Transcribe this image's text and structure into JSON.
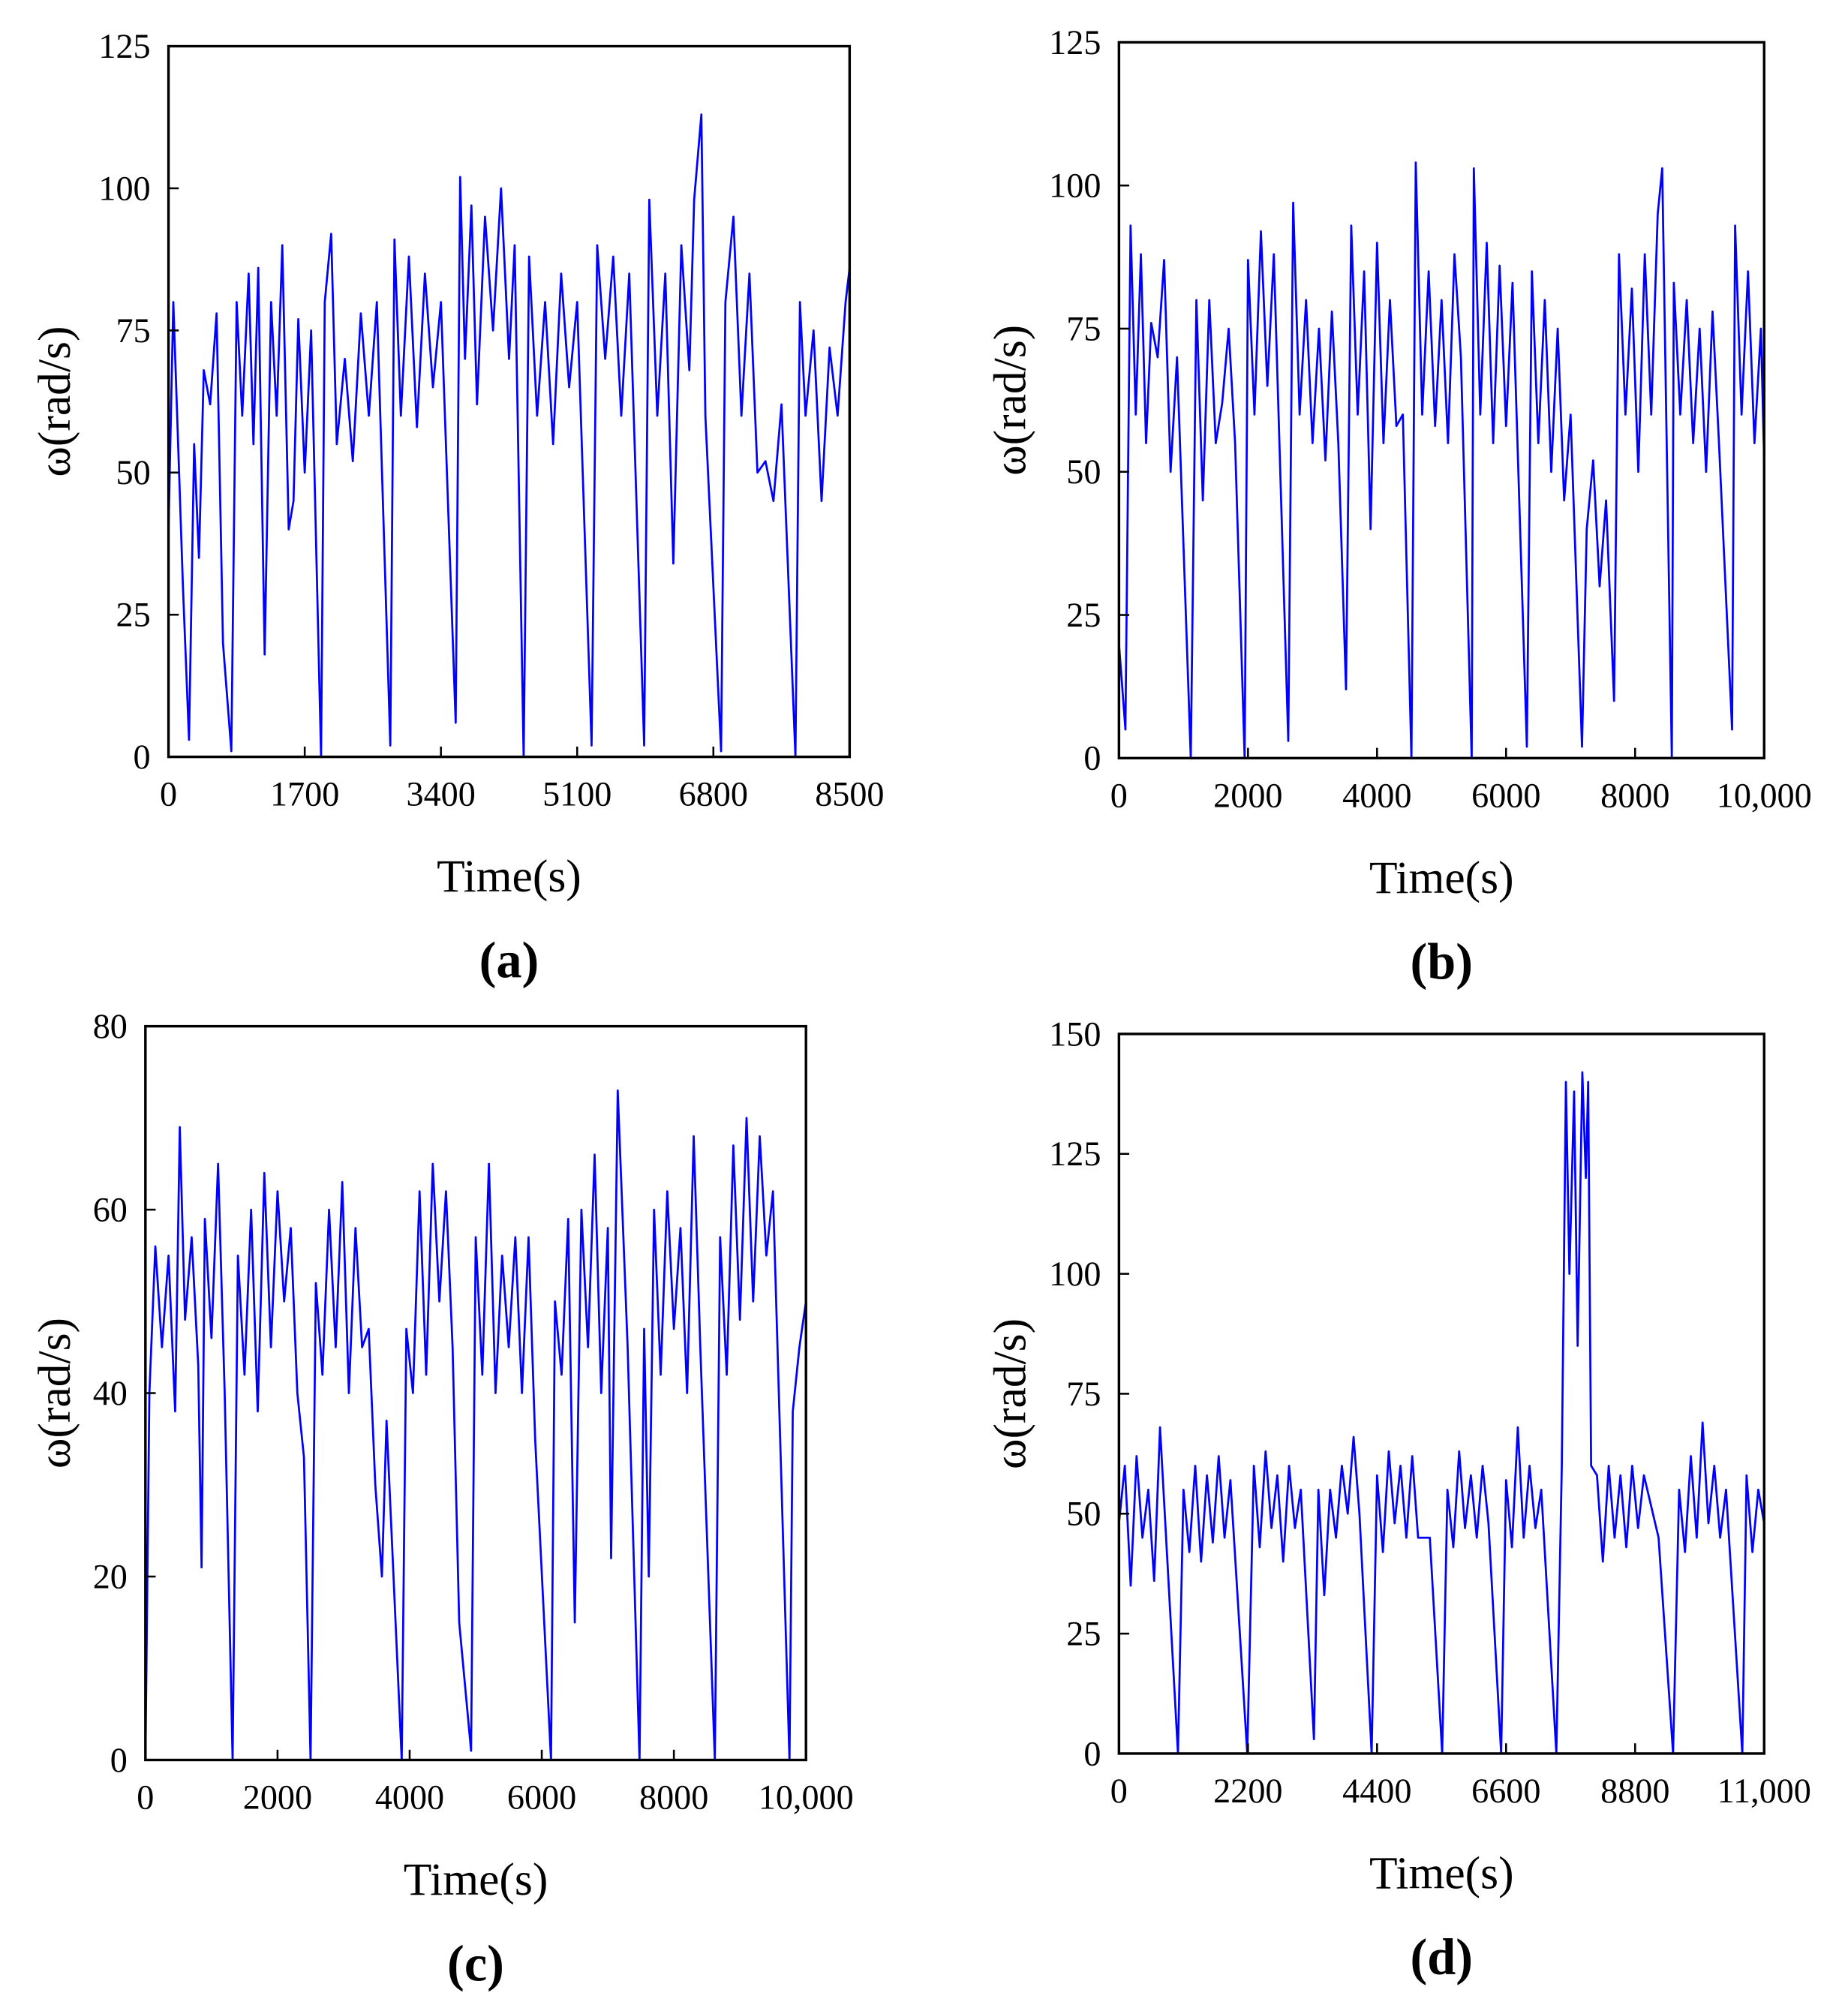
{
  "chart_data": [
    {
      "type": "line",
      "caption": "(a)",
      "xlabel": "Time(s)",
      "ylabel": "ω(rad/s)",
      "color": "#0000ff",
      "xlim": [
        0,
        8500
      ],
      "ylim": [
        0,
        125
      ],
      "xticks": [
        0,
        1700,
        3400,
        5100,
        6800,
        8500
      ],
      "yticks": [
        0,
        25,
        50,
        75,
        100,
        125
      ],
      "x": [
        0,
        60,
        120,
        180,
        256,
        320,
        380,
        440,
        520,
        600,
        680,
        784,
        850,
        920,
        1000,
        1060,
        1120,
        1200,
        1280,
        1350,
        1420,
        1500,
        1560,
        1620,
        1700,
        1780,
        1904,
        1950,
        2030,
        2100,
        2200,
        2300,
        2400,
        2500,
        2600,
        2768,
        2820,
        2900,
        3000,
        3100,
        3200,
        3300,
        3400,
        3584,
        3640,
        3700,
        3780,
        3850,
        3950,
        4050,
        4150,
        4250,
        4320,
        4432,
        4500,
        4600,
        4700,
        4800,
        4900,
        5000,
        5100,
        5280,
        5350,
        5450,
        5550,
        5650,
        5750,
        5936,
        6000,
        6100,
        6200,
        6300,
        6400,
        6500,
        6560,
        6650,
        6700,
        6896,
        6950,
        7050,
        7150,
        7250,
        7350,
        7450,
        7550,
        7650,
        7824,
        7880,
        7950,
        8050,
        8150,
        8250,
        8350,
        8450,
        8500
      ],
      "values": [
        40,
        80,
        55,
        30,
        3,
        55,
        35,
        68,
        62,
        78,
        20,
        1,
        80,
        60,
        85,
        55,
        86,
        18,
        80,
        60,
        90,
        40,
        45,
        77,
        50,
        75,
        0,
        80,
        92,
        55,
        70,
        52,
        78,
        60,
        80,
        2,
        91,
        60,
        88,
        58,
        85,
        65,
        80,
        6,
        102,
        70,
        97,
        62,
        95,
        75,
        100,
        70,
        90,
        0,
        88,
        60,
        80,
        55,
        85,
        65,
        80,
        2,
        90,
        70,
        88,
        60,
        85,
        2,
        98,
        60,
        85,
        34,
        90,
        68,
        98,
        113,
        60,
        1,
        80,
        95,
        60,
        85,
        50,
        52,
        45,
        62,
        0,
        80,
        60,
        75,
        45,
        72,
        60,
        80,
        86
      ]
    },
    {
      "type": "line",
      "caption": "(b)",
      "xlabel": "Time(s)",
      "ylabel": "ω(rad/s)",
      "color": "#0000ff",
      "xlim": [
        0,
        10000
      ],
      "ylim": [
        0,
        125
      ],
      "xticks": [
        0,
        2000,
        4000,
        6000,
        8000,
        {
          "value": 10000,
          "label": "10,000"
        }
      ],
      "yticks": [
        0,
        25,
        50,
        75,
        100,
        125
      ],
      "x": [
        0,
        100,
        180,
        260,
        340,
        420,
        500,
        600,
        700,
        800,
        900,
        1113,
        1200,
        1300,
        1400,
        1500,
        1600,
        1700,
        1800,
        1948,
        2000,
        2100,
        2200,
        2300,
        2400,
        2624,
        2700,
        2800,
        2900,
        3000,
        3100,
        3200,
        3300,
        3400,
        3519,
        3600,
        3700,
        3800,
        3900,
        4000,
        4100,
        4200,
        4300,
        4400,
        4533,
        4600,
        4700,
        4800,
        4900,
        5000,
        5100,
        5200,
        5300,
        5467,
        5500,
        5600,
        5700,
        5800,
        5900,
        6000,
        6100,
        6322,
        6400,
        6500,
        6600,
        6700,
        6800,
        6900,
        7000,
        7177,
        7250,
        7350,
        7450,
        7550,
        7674,
        7750,
        7850,
        7950,
        8050,
        8150,
        8250,
        8350,
        8420,
        8569,
        8600,
        8700,
        8800,
        8900,
        9000,
        9100,
        9200,
        9300,
        9503,
        9550,
        9650,
        9750,
        9850,
        9950,
        10000
      ],
      "values": [
        20,
        5,
        93,
        60,
        88,
        55,
        76,
        70,
        87,
        50,
        70,
        0,
        80,
        45,
        80,
        55,
        62,
        75,
        55,
        0,
        87,
        60,
        92,
        65,
        88,
        3,
        97,
        60,
        80,
        55,
        75,
        52,
        78,
        55,
        12,
        93,
        60,
        85,
        40,
        90,
        55,
        80,
        58,
        60,
        0,
        104,
        60,
        85,
        58,
        80,
        55,
        88,
        70,
        0,
        103,
        60,
        90,
        55,
        86,
        58,
        83,
        2,
        85,
        55,
        80,
        50,
        75,
        45,
        60,
        2,
        40,
        52,
        30,
        45,
        10,
        88,
        60,
        82,
        50,
        88,
        60,
        95,
        103,
        0,
        83,
        60,
        80,
        55,
        75,
        50,
        78,
        55,
        5,
        93,
        60,
        85,
        55,
        75,
        52
      ]
    },
    {
      "type": "line",
      "caption": "(c)",
      "xlabel": "Time(s)",
      "ylabel": "ω(rad/s)",
      "color": "#0000ff",
      "xlim": [
        0,
        10000
      ],
      "ylim": [
        0,
        80
      ],
      "xticks": [
        0,
        2000,
        4000,
        6000,
        8000,
        {
          "value": 10000,
          "label": "10,000"
        }
      ],
      "yticks": [
        0,
        20,
        40,
        60,
        80
      ],
      "x": [
        0,
        60,
        150,
        250,
        350,
        450,
        520,
        600,
        700,
        800,
        850,
        900,
        1000,
        1100,
        1200,
        1320,
        1400,
        1500,
        1600,
        1700,
        1800,
        1900,
        2000,
        2100,
        2200,
        2300,
        2400,
        2500,
        2580,
        2680,
        2780,
        2880,
        2980,
        3080,
        3180,
        3280,
        3380,
        3480,
        3580,
        3650,
        3880,
        3950,
        4050,
        4150,
        4250,
        4350,
        4450,
        4550,
        4650,
        4750,
        4930,
        5000,
        5100,
        5200,
        5300,
        5400,
        5500,
        5600,
        5700,
        5800,
        5900,
        6140,
        6200,
        6300,
        6400,
        6500,
        6600,
        6700,
        6800,
        6900,
        7000,
        7050,
        7150,
        7300,
        7480,
        7550,
        7620,
        7700,
        7800,
        7900,
        8000,
        8100,
        8200,
        8300,
        8400,
        8620,
        8700,
        8800,
        8900,
        9000,
        9100,
        9200,
        9300,
        9400,
        9500,
        9750,
        9800,
        9900,
        10000
      ],
      "values": [
        0,
        40,
        56,
        45,
        55,
        38,
        69,
        48,
        57,
        43,
        21,
        59,
        46,
        65,
        40,
        0,
        55,
        42,
        60,
        38,
        64,
        45,
        62,
        50,
        58,
        40,
        33,
        0,
        52,
        42,
        60,
        45,
        63,
        40,
        58,
        45,
        47,
        30,
        20,
        37,
        0,
        47,
        40,
        62,
        42,
        65,
        50,
        62,
        45,
        15,
        1,
        57,
        42,
        65,
        40,
        55,
        45,
        57,
        40,
        57,
        35,
        0,
        50,
        42,
        59,
        15,
        60,
        45,
        66,
        40,
        58,
        22,
        73,
        45,
        0,
        47,
        20,
        60,
        42,
        62,
        47,
        58,
        40,
        68,
        45,
        0,
        57,
        42,
        67,
        48,
        70,
        50,
        68,
        55,
        62,
        0,
        38,
        45,
        50
      ]
    },
    {
      "type": "line",
      "caption": "(d)",
      "xlabel": "Time(s)",
      "ylabel": "ω(rad/s)",
      "color": "#0000ff",
      "xlim": [
        0,
        11000
      ],
      "ylim": [
        0,
        150
      ],
      "xticks": [
        0,
        2200,
        4400,
        6600,
        8800,
        {
          "value": 11000,
          "label": "11,000"
        }
      ],
      "yticks": [
        0,
        25,
        50,
        75,
        100,
        125,
        150
      ],
      "x": [
        0,
        100,
        200,
        300,
        400,
        500,
        600,
        700,
        1006,
        1100,
        1200,
        1300,
        1400,
        1500,
        1600,
        1700,
        1800,
        1900,
        2187,
        2300,
        2400,
        2500,
        2600,
        2700,
        2800,
        2900,
        3000,
        3100,
        3324,
        3400,
        3500,
        3600,
        3700,
        3800,
        3900,
        4000,
        4100,
        4308,
        4400,
        4500,
        4600,
        4700,
        4800,
        4900,
        5000,
        5100,
        5300,
        5511,
        5600,
        5700,
        5800,
        5900,
        6000,
        6100,
        6200,
        6300,
        6516,
        6600,
        6700,
        6800,
        6900,
        7000,
        7100,
        7200,
        7457,
        7550,
        7620,
        7680,
        7760,
        7820,
        7900,
        7960,
        8000,
        8050,
        8150,
        8250,
        8350,
        8450,
        8550,
        8650,
        8750,
        8850,
        8950,
        9200,
        9447,
        9550,
        9650,
        9750,
        9850,
        9950,
        10050,
        10150,
        10250,
        10350,
        10628,
        10700,
        10800,
        10900,
        11000
      ],
      "values": [
        48,
        60,
        35,
        62,
        45,
        55,
        36,
        68,
        0,
        55,
        42,
        60,
        40,
        58,
        44,
        62,
        45,
        57,
        0,
        60,
        43,
        63,
        47,
        58,
        40,
        60,
        47,
        55,
        3,
        55,
        33,
        55,
        45,
        60,
        50,
        66,
        50,
        0,
        58,
        42,
        63,
        48,
        60,
        45,
        62,
        45,
        45,
        0,
        55,
        43,
        63,
        47,
        58,
        45,
        60,
        48,
        0,
        57,
        43,
        68,
        45,
        60,
        47,
        55,
        0,
        60,
        140,
        100,
        138,
        85,
        142,
        120,
        140,
        60,
        58,
        40,
        60,
        45,
        58,
        43,
        60,
        47,
        58,
        45,
        0,
        55,
        42,
        62,
        45,
        69,
        48,
        60,
        45,
        55,
        0,
        58,
        42,
        55,
        48
      ]
    }
  ]
}
